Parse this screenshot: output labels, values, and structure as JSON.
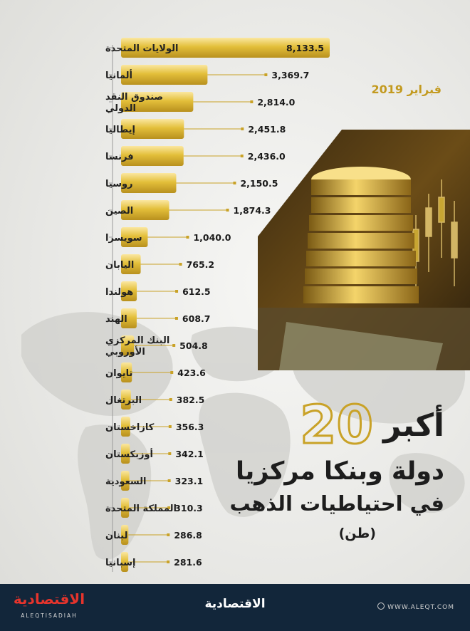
{
  "date_label": "فبراير 2019",
  "title": {
    "top": "أكبر",
    "number": "20",
    "line2": "دولة وبنكا مركزيا",
    "line3": "في احتياطيات الذهب",
    "unit": "(طن)"
  },
  "colors": {
    "gold_bar": "#e3bf3a",
    "gold_accent": "#c9a227",
    "footer_bg": "#12263a",
    "brand_red": "#e6342c"
  },
  "footer": {
    "brand_logo_left": "الاقتصادية",
    "brand_latin": "ALEQTISADIAH",
    "brand_center": "الاقتصادية",
    "url": "WWW.ALEQT.COM"
  },
  "chart_data": {
    "type": "bar",
    "orientation": "horizontal",
    "title": "",
    "xlabel": "",
    "ylabel": "",
    "categories": [
      "الولايات المتحدة",
      "ألمانيا",
      "صندوق النقد\nالدولي",
      "إيطاليا",
      "فرنسا",
      "روسيا",
      "الصين",
      "سويسرا",
      "اليابان",
      "هولندا",
      "الهند",
      "البنك المركزي\nالأوروبي",
      "تايوان",
      "البرتغال",
      "كازاخستان",
      "أوزبكستان",
      "السعودية",
      "المملكة المتحدة",
      "لبنان",
      "إسبانيا"
    ],
    "values": [
      8133.5,
      3369.7,
      2814.0,
      2451.8,
      2436.0,
      2150.5,
      1874.3,
      1040.0,
      765.2,
      612.5,
      608.7,
      504.8,
      423.6,
      382.5,
      356.3,
      342.1,
      323.1,
      310.3,
      286.8,
      281.6
    ],
    "value_labels": [
      "8,133.5",
      "3,369.7",
      "2,814.0",
      "2,451.8",
      "2,436.0",
      "2,150.5",
      "1,874.3",
      "1,040.0",
      "765.2",
      "612.5",
      "608.7",
      "504.8",
      "423.6",
      "382.5",
      "356.3",
      "342.1",
      "323.1",
      "310.3",
      "286.8",
      "281.6"
    ],
    "xlim": [
      0,
      8133.5
    ],
    "grid": false,
    "legend": "none"
  }
}
